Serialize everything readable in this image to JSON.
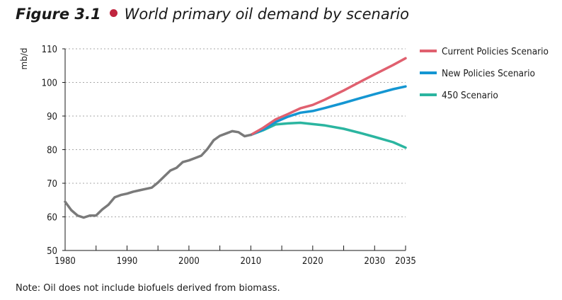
{
  "figure": {
    "number": "Figure 3.1",
    "title": "World primary oil demand by scenario"
  },
  "note": "Note: Oil does not include biofuels derived from biomass.",
  "colors": {
    "history": "#7a7a7a",
    "current_policies": "#e0606f",
    "new_policies": "#1496d2",
    "scenario_450": "#2bb5a0",
    "bullet": "#c0253f"
  },
  "chart_data": {
    "type": "line",
    "ylabel": "mb/d",
    "xlim": [
      1980,
      2035
    ],
    "ylim": [
      50,
      110
    ],
    "xticks": [
      1980,
      1990,
      2000,
      2010,
      2020,
      2030,
      2035
    ],
    "yticks": [
      50,
      60,
      70,
      80,
      90,
      100,
      110
    ],
    "grid": "horizontal dotted",
    "legend_position": "right",
    "series": [
      {
        "key": "history",
        "x": [
          1980,
          1981,
          1982,
          1983,
          1984,
          1985,
          1986,
          1987,
          1988,
          1989,
          1990,
          1991,
          1992,
          1993,
          1994,
          1995,
          1996,
          1997,
          1998,
          1999,
          2000,
          2001,
          2002,
          2003,
          2004,
          2005,
          2006,
          2007,
          2008,
          2009,
          2010
        ],
        "y": [
          64.5,
          62.0,
          60.4,
          59.8,
          60.4,
          60.4,
          62.2,
          63.6,
          65.8,
          66.5,
          66.9,
          67.5,
          67.9,
          68.3,
          68.7,
          70.2,
          72.0,
          73.8,
          74.6,
          76.3,
          76.8,
          77.5,
          78.2,
          80.2,
          82.8,
          84.1,
          84.8,
          85.5,
          85.2,
          84.0,
          84.4
        ]
      },
      {
        "key": "current_policies",
        "name": "Current Policies Scenario",
        "x": [
          2010,
          2012,
          2014,
          2016,
          2018,
          2020,
          2022,
          2025,
          2028,
          2030,
          2033,
          2035
        ],
        "y": [
          84.4,
          86.5,
          89.0,
          90.6,
          92.3,
          93.3,
          94.9,
          97.6,
          100.5,
          102.4,
          105.2,
          107.2
        ]
      },
      {
        "key": "new_policies",
        "name": "New Policies Scenario",
        "x": [
          2010,
          2012,
          2014,
          2016,
          2018,
          2020,
          2022,
          2025,
          2028,
          2030,
          2033,
          2035
        ],
        "y": [
          84.4,
          86.0,
          88.2,
          89.8,
          91.0,
          91.5,
          92.4,
          93.9,
          95.5,
          96.5,
          98.0,
          98.8
        ]
      },
      {
        "key": "scenario_450",
        "name": "450 Scenario",
        "x": [
          2010,
          2012,
          2014,
          2016,
          2018,
          2020,
          2022,
          2025,
          2028,
          2030,
          2033,
          2035
        ],
        "y": [
          84.4,
          85.8,
          87.5,
          87.8,
          88.0,
          87.6,
          87.2,
          86.2,
          84.8,
          83.8,
          82.2,
          80.6
        ]
      }
    ]
  }
}
